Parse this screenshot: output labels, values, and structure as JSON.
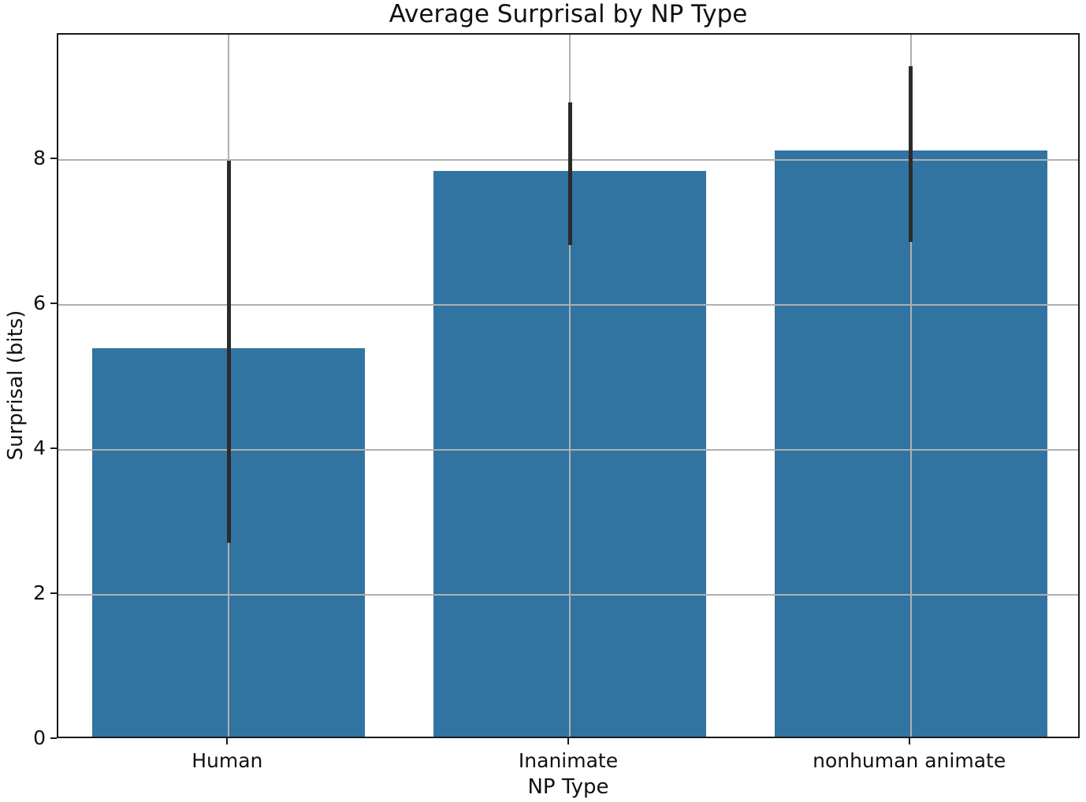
{
  "chart_data": {
    "type": "bar",
    "title": "Average Surprisal by NP Type",
    "xlabel": "NP Type",
    "ylabel": "Surprisal (bits)",
    "categories": [
      "Human",
      "Inanimate",
      "nonhuman animate"
    ],
    "values": [
      5.36,
      7.81,
      8.09
    ],
    "error_low": [
      2.72,
      6.83,
      6.88
    ],
    "error_high": [
      7.99,
      8.8,
      9.3
    ],
    "yticks": [
      0,
      2,
      4,
      6,
      8
    ],
    "ylim": [
      0,
      9.73
    ],
    "grid": true,
    "legend": "none",
    "bar_color": "#3274a1",
    "error_color": "#2b2b2b",
    "grid_color": "#b0b0b0",
    "spine_color": "#1a1a1a"
  }
}
